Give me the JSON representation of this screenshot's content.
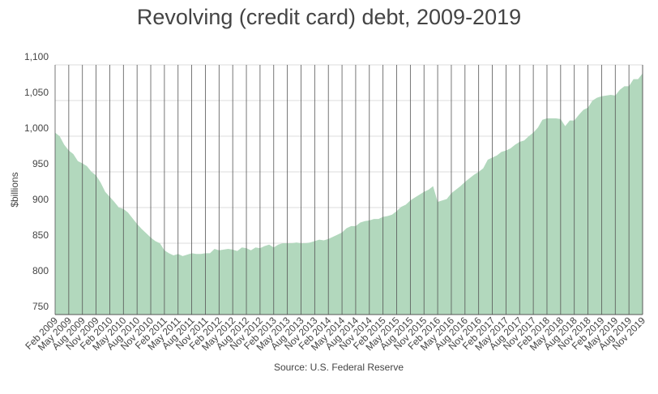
{
  "chart_data": {
    "type": "area",
    "title": "Revolving (credit card) debt, 2009-2019",
    "y_label": "$billions",
    "source": "Source: U.S. Federal Reserve",
    "categories": [
      "Feb 2009",
      null,
      null,
      "May 2009",
      null,
      null,
      "Aug 2009",
      null,
      null,
      "Nov 2009",
      null,
      null,
      "Feb 2010",
      null,
      null,
      "May 2010",
      null,
      null,
      "Aug 2010",
      null,
      null,
      "Nov 2010",
      null,
      null,
      "Feb 2011",
      null,
      null,
      "May 2011",
      null,
      null,
      "Aug 2011",
      null,
      null,
      "Nov 2011",
      null,
      null,
      "Feb 2012",
      null,
      null,
      "May 2012",
      null,
      null,
      "Aug 2012",
      null,
      null,
      "Nov 2012",
      null,
      null,
      "Feb 2013",
      null,
      null,
      "May 2013",
      null,
      null,
      "Aug 2013",
      null,
      null,
      "Nov 2013",
      null,
      null,
      "Feb 2014",
      null,
      null,
      "May 2014",
      null,
      null,
      "Aug 2014",
      null,
      null,
      "Nov 2014",
      null,
      null,
      "Feb 2015",
      null,
      null,
      "May 2015",
      null,
      null,
      "Aug 2015",
      null,
      null,
      "Nov 2015",
      null,
      null,
      "Feb 2016",
      null,
      null,
      "May 2016",
      null,
      null,
      "Aug 2016",
      null,
      null,
      "Nov 2016",
      null,
      null,
      "Feb 2017",
      null,
      null,
      "May 2017",
      null,
      null,
      "Aug 2017",
      null,
      null,
      "Nov 2017",
      null,
      null,
      "Feb 2018",
      null,
      null,
      "May 2018",
      null,
      null,
      "Aug 2018",
      null,
      null,
      "Nov 2018",
      null,
      null,
      "Feb 2019",
      null,
      null,
      "May 2019",
      null,
      null,
      "Aug 2019",
      null,
      null,
      "Nov 2019"
    ],
    "values": [
      1005,
      1000,
      988,
      980,
      975,
      965,
      962,
      958,
      950,
      945,
      935,
      922,
      915,
      908,
      900,
      898,
      893,
      885,
      877,
      870,
      864,
      858,
      853,
      850,
      840,
      836,
      833,
      835,
      832,
      834,
      836,
      835,
      835,
      836,
      836,
      842,
      840,
      841,
      842,
      841,
      839,
      844,
      843,
      840,
      844,
      843,
      846,
      848,
      844,
      848,
      850,
      850,
      850,
      851,
      850,
      850,
      851,
      853,
      855,
      854,
      856,
      859,
      862,
      865,
      871,
      874,
      874,
      879,
      881,
      882,
      884,
      884,
      887,
      888,
      890,
      895,
      901,
      904,
      910,
      914,
      918,
      922,
      925,
      930,
      908,
      910,
      912,
      920,
      925,
      930,
      936,
      941,
      946,
      950,
      955,
      967,
      970,
      973,
      978,
      980,
      983,
      988,
      992,
      994,
      1000,
      1005,
      1012,
      1023,
      1025,
      1025,
      1025,
      1024,
      1014,
      1022,
      1022,
      1030,
      1037,
      1040,
      1050,
      1054,
      1056,
      1057,
      1058,
      1057,
      1065,
      1070,
      1070,
      1080,
      1080,
      1088
    ],
    "color": "#b2d8bd",
    "ylim": [
      750,
      1100
    ],
    "yticks": [
      750,
      800,
      850,
      900,
      950,
      {
        "value": 1000,
        "label": "1,000"
      },
      {
        "value": 1050,
        "label": "1,050"
      },
      {
        "value": 1100,
        "label": "1,100"
      }
    ],
    "grid": true
  }
}
